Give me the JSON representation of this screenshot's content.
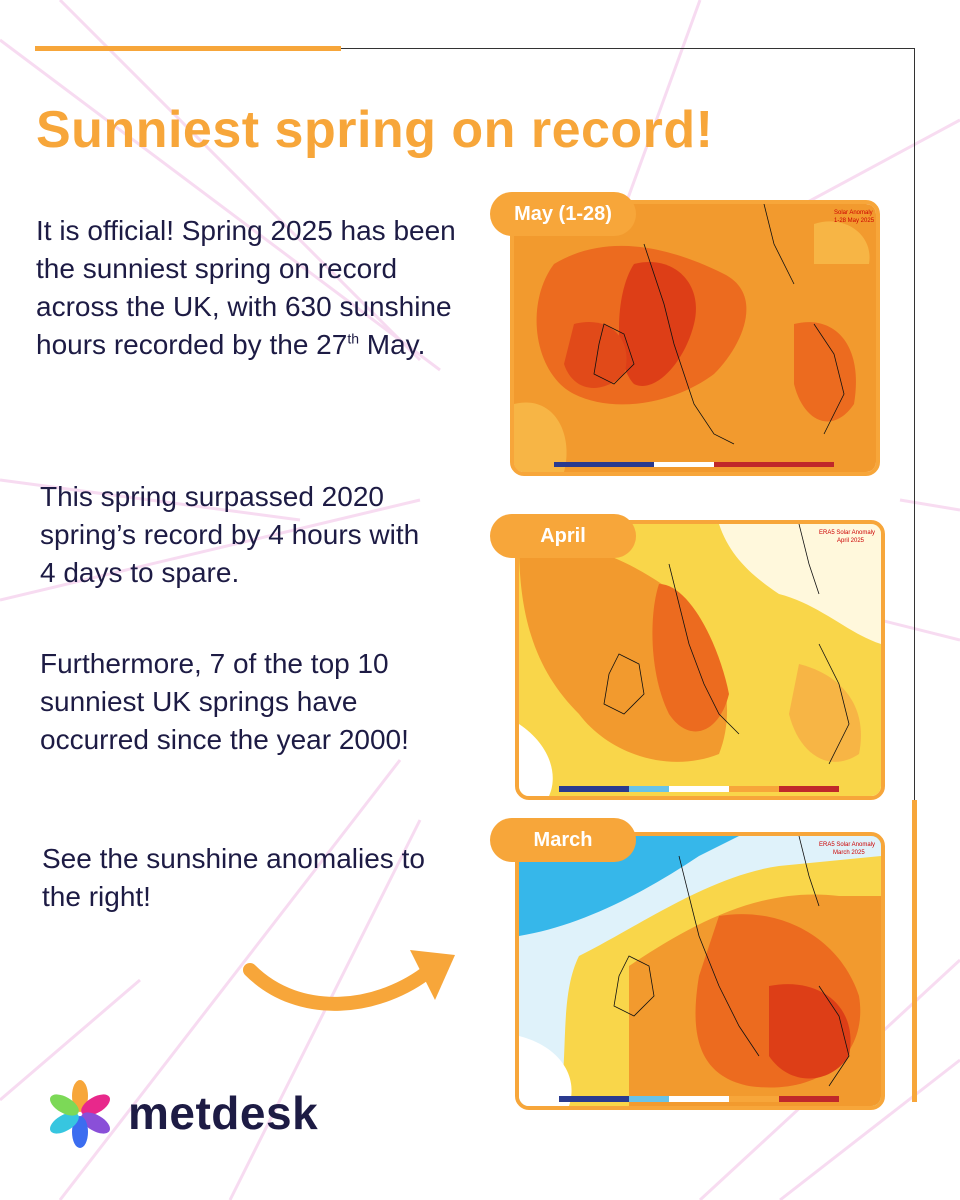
{
  "title": "Sunniest spring on record!",
  "paragraphs": {
    "p1_main": "It is official! Spring 2025 has been the sunniest spring on record across the UK, with 630 sunshine hours recorded by the 27",
    "p1_sup": "th",
    "p1_end": " May.",
    "p2": "This spring surpassed 2020 spring’s record by 4 hours with 4 days to spare.",
    "p3": "Furthermore, 7 of the top 10 sunniest UK springs have occurred since the year 2000!",
    "p4": "See the sunshine anomalies to the right!"
  },
  "panels": [
    {
      "label": "May (1-28)",
      "map_title": "Solar Anomaly",
      "map_subtitle": "1-28 May 2025"
    },
    {
      "label": "April",
      "map_title": "ERA5 Solar Anomaly",
      "map_subtitle": "April 2025"
    },
    {
      "label": "March",
      "map_title": "ERA5 Solar Anomaly",
      "map_subtitle": "March 2025"
    }
  ],
  "brand": {
    "name": "metdesk"
  },
  "colors": {
    "accent": "#f7a63a",
    "text": "#1d1b44"
  }
}
